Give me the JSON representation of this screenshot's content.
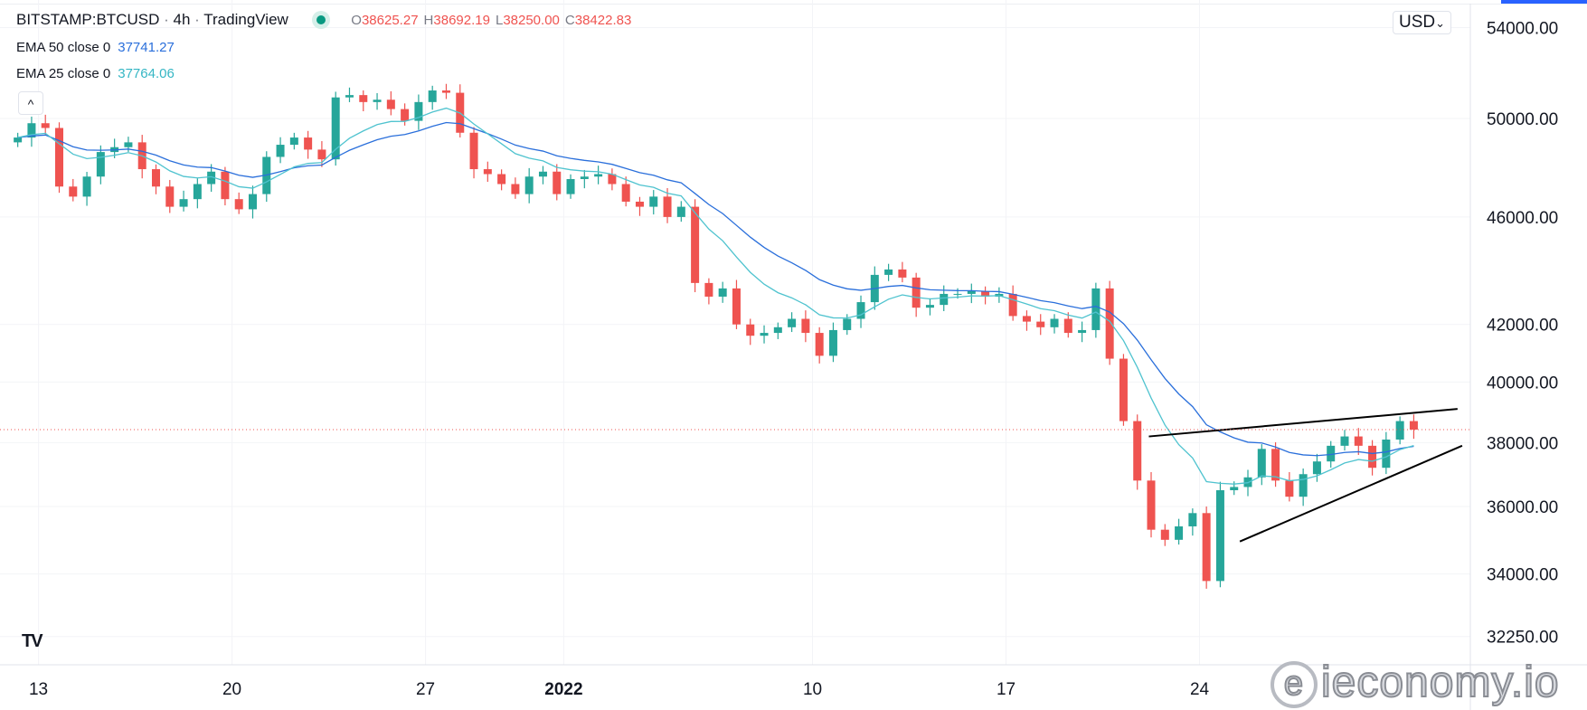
{
  "header": {
    "symbol": "BITSTAMP:BTCUSD",
    "interval": "4h",
    "source": "TradingView",
    "sep": "·",
    "ohlc": {
      "o_label": "O",
      "o": "38625.27",
      "h_label": "H",
      "h": "38692.19",
      "l_label": "L",
      "l": "38250.00",
      "c_label": "C",
      "c": "38422.83"
    }
  },
  "indicators": [
    {
      "label": "EMA 50 close 0",
      "value": "37741.27",
      "color": "#2a6fdb"
    },
    {
      "label": "EMA 25 close 0",
      "value": "37764.06",
      "color": "#35b6c4"
    }
  ],
  "collapse_icon": "^",
  "currency": "USD",
  "currency_caret": "⌄",
  "logo": "TV",
  "watermark": "ieconomy.io",
  "colors": {
    "up": "#26a69a",
    "down": "#ef5350",
    "ema50": "#2a6fdb",
    "ema25": "#4fc3cf",
    "trendline": "#000000",
    "price_line": "#ef5350"
  },
  "chart_data": {
    "type": "candlestick",
    "title": "BITSTAMP:BTCUSD · 4h · TradingView",
    "y_scale": "log",
    "ylim": [
      31500,
      54500
    ],
    "y_ticks": [
      "54000.00",
      "50000.00",
      "46000.00",
      "42000.00",
      "40000.00",
      "38000.00",
      "36000.00",
      "34000.00",
      "32250.00"
    ],
    "y_tick_values": [
      54000,
      50000,
      46000,
      42000,
      40000,
      38000,
      36000,
      34000,
      32250
    ],
    "x_ticks": [
      {
        "label": "13",
        "date": "2021-12-13"
      },
      {
        "label": "20",
        "date": "2021-12-20"
      },
      {
        "label": "27",
        "date": "2021-12-27"
      },
      {
        "label": "2022",
        "date": "2022-01-01",
        "bold": true
      },
      {
        "label": "10",
        "date": "2022-01-10"
      },
      {
        "label": "17",
        "date": "2022-01-17"
      },
      {
        "label": "24",
        "date": "2022-01-24"
      }
    ],
    "start": "2021-12-12",
    "closes": [
      49200,
      49800,
      49600,
      47200,
      46800,
      47600,
      48600,
      48800,
      49000,
      47900,
      47200,
      46400,
      46700,
      47300,
      47800,
      46700,
      46300,
      46900,
      48400,
      48900,
      49200,
      48700,
      48300,
      50900,
      51000,
      50700,
      50800,
      50400,
      49900,
      50700,
      51200,
      51100,
      49400,
      47900,
      47700,
      47300,
      46900,
      47600,
      47800,
      46900,
      47500,
      47600,
      47700,
      47300,
      46600,
      46400,
      46800,
      46000,
      46400,
      43500,
      43000,
      43300,
      42000,
      41600,
      41700,
      41900,
      42200,
      41700,
      40900,
      41800,
      42200,
      42800,
      43800,
      44000,
      43700,
      42600,
      42700,
      43100,
      43100,
      43200,
      43000,
      43100,
      42300,
      42100,
      41900,
      42200,
      41700,
      41800,
      43300,
      40800,
      38700,
      36800,
      35300,
      35000,
      35400,
      35800,
      33800,
      36500,
      36600,
      36900,
      37800,
      36800,
      36300,
      37000,
      37400,
      37900,
      38200,
      37900,
      37200,
      38100,
      38700,
      38422
    ],
    "first_open": 49000,
    "last_price": 38422.83,
    "ema": [
      {
        "name": "EMA 50 close 0"
      },
      {
        "name": "EMA 25 close 0"
      }
    ],
    "trendlines": [
      {
        "from": [
          "2022-01-22T04:00",
          38200
        ],
        "to": [
          "2022-02-02T08:00",
          39100
        ]
      },
      {
        "from": [
          "2022-01-25T11:00",
          34950
        ],
        "to": [
          "2022-02-02T12:00",
          37900
        ]
      }
    ]
  }
}
